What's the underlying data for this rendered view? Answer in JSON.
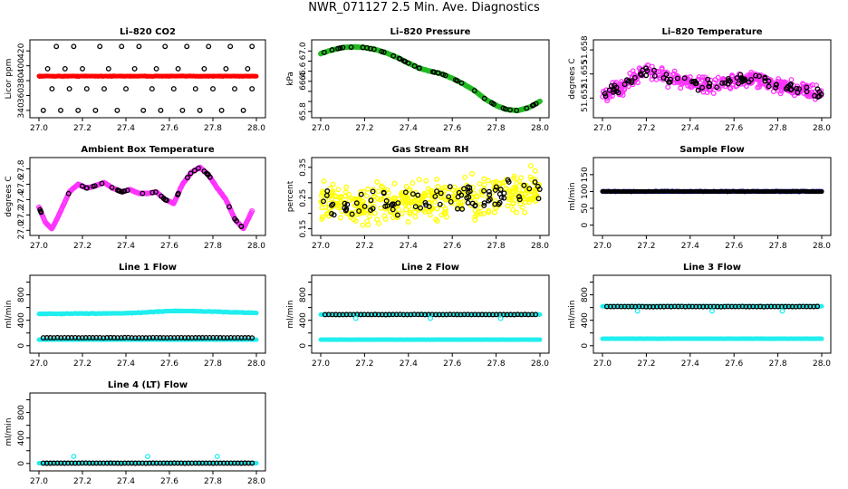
{
  "figure_title": "NWR_071127  2.5 Min. Ave. Diagnostics",
  "colors": {
    "black": "#000000",
    "red": "#ff0000",
    "green": "#22bb22",
    "magenta": "#ff33ff",
    "yellow": "#ffff00",
    "blue": "#0000ee",
    "cyan": "#22eeee"
  },
  "chart_data": [
    {
      "id": "co2",
      "type": "scatter",
      "title": "Li–820 CO2",
      "ylabel": "Licor ppm",
      "xlim": [
        27.0,
        28.0
      ],
      "ylim": [
        335,
        430
      ],
      "xticks": [
        27.0,
        27.2,
        27.4,
        27.6,
        27.8,
        28.0
      ],
      "xtick_labels": [
        "27.0",
        "27.2",
        "27.4",
        "27.6",
        "27.8",
        "28.0"
      ],
      "yticks": [
        340,
        360,
        380,
        400,
        420
      ],
      "ytick_labels": [
        "340",
        "360",
        "380",
        "400",
        "420"
      ],
      "series": [
        {
          "name": "primary",
          "color": "red",
          "style": "dots",
          "x_range": [
            27.0,
            28.0
          ],
          "baseline": 386,
          "noise": 0.6,
          "n": 300
        },
        {
          "name": "standards",
          "color": "black",
          "style": "rings",
          "x": [
            27.02,
            27.1,
            27.18,
            27.26,
            27.36,
            27.48,
            27.56,
            27.66,
            27.74,
            27.84,
            27.94,
            27.06,
            27.14,
            27.22,
            27.3,
            27.4,
            27.52,
            27.62,
            27.72,
            27.8,
            27.9,
            27.98,
            27.04,
            27.12,
            27.2,
            27.32,
            27.44,
            27.54,
            27.64,
            27.76,
            27.86,
            27.96,
            27.08,
            27.16,
            27.28,
            27.38,
            27.46,
            27.58,
            27.68,
            27.78,
            27.88,
            27.98
          ],
          "y": [
            340,
            340,
            340,
            340,
            340,
            340,
            340,
            340,
            340,
            340,
            340,
            369,
            369,
            369,
            369,
            369,
            369,
            369,
            369,
            369,
            369,
            369,
            396,
            396,
            396,
            396,
            396,
            396,
            396,
            396,
            396,
            396,
            426,
            426,
            426,
            426,
            426,
            426,
            426,
            426,
            426,
            426
          ]
        }
      ]
    },
    {
      "id": "pressure",
      "type": "scatter",
      "title": "Li–820 Pressure",
      "ylabel": "kPa",
      "xlim": [
        27.0,
        28.0
      ],
      "ylim": [
        65.75,
        67.15
      ],
      "xticks": [
        27.0,
        27.2,
        27.4,
        27.6,
        27.8,
        28.0
      ],
      "xtick_labels": [
        "27.0",
        "27.2",
        "27.4",
        "27.6",
        "27.8",
        "28.0"
      ],
      "yticks": [
        65.8,
        66.0,
        66.2,
        66.4,
        66.6,
        66.8,
        67.0
      ],
      "ytick_labels": [
        "65.8",
        "",
        "",
        "66.4",
        "66.6",
        "",
        "67.0"
      ],
      "series": [
        {
          "name": "pressure",
          "color": "green",
          "style": "curve-rings",
          "x": [
            27.0,
            27.05,
            27.1,
            27.15,
            27.2,
            27.25,
            27.3,
            27.35,
            27.4,
            27.45,
            27.5,
            27.55,
            27.6,
            27.65,
            27.7,
            27.75,
            27.8,
            27.85,
            27.9,
            27.95,
            28.0
          ],
          "y": [
            66.95,
            67.02,
            67.07,
            67.08,
            67.07,
            67.03,
            66.96,
            66.87,
            66.76,
            66.66,
            66.6,
            66.55,
            66.46,
            66.35,
            66.22,
            66.05,
            65.92,
            65.84,
            65.82,
            65.88,
            66.0
          ]
        }
      ]
    },
    {
      "id": "licor-temp",
      "type": "scatter",
      "title": "Li–820 Temperature",
      "ylabel": "degrees C",
      "xlim": [
        27.0,
        28.0
      ],
      "ylim": [
        51.65,
        51.6588
      ],
      "xticks": [
        27.0,
        27.2,
        27.4,
        27.6,
        27.8,
        28.0
      ],
      "xtick_labels": [
        "27.0",
        "27.2",
        "27.4",
        "27.6",
        "27.8",
        "28.0"
      ],
      "yticks": [
        51.652,
        51.655,
        51.658
      ],
      "ytick_labels": [
        "51.652",
        "51.655",
        "51.658"
      ],
      "series": [
        {
          "name": "temperature",
          "color": "magenta",
          "style": "noisy-rings",
          "x": [
            27.0,
            27.1,
            27.2,
            27.3,
            27.4,
            27.5,
            27.6,
            27.7,
            27.8,
            27.9,
            28.0
          ],
          "y": [
            51.6525,
            51.6535,
            51.6555,
            51.6545,
            51.6538,
            51.6535,
            51.6542,
            51.6545,
            51.6535,
            51.653,
            51.6525
          ],
          "spread": 0.0014
        }
      ]
    },
    {
      "id": "ambient-temp",
      "type": "scatter",
      "title": "Ambient Box Temperature",
      "ylabel": "degrees C",
      "xlim": [
        27.0,
        28.0
      ],
      "ylim": [
        26.98,
        27.9
      ],
      "xticks": [
        27.0,
        27.2,
        27.4,
        27.6,
        27.8,
        28.0
      ],
      "xtick_labels": [
        "27.0",
        "27.2",
        "27.4",
        "27.6",
        "27.8",
        "28.0"
      ],
      "yticks": [
        27.0,
        27.2,
        27.4,
        27.6,
        27.8
      ],
      "ytick_labels": [
        "27.0",
        "27.2",
        "27.4",
        "27.6",
        "27.8"
      ],
      "series": [
        {
          "name": "temperature",
          "color": "magenta",
          "style": "curve-rings",
          "x": [
            27.0,
            27.03,
            27.06,
            27.1,
            27.14,
            27.18,
            27.22,
            27.26,
            27.3,
            27.34,
            27.38,
            27.42,
            27.46,
            27.5,
            27.54,
            27.58,
            27.62,
            27.66,
            27.7,
            27.74,
            27.78,
            27.82,
            27.86,
            27.9,
            27.94,
            27.98
          ],
          "y": [
            27.3,
            27.1,
            27.02,
            27.25,
            27.5,
            27.6,
            27.55,
            27.58,
            27.62,
            27.55,
            27.5,
            27.53,
            27.48,
            27.48,
            27.5,
            27.4,
            27.35,
            27.6,
            27.75,
            27.82,
            27.72,
            27.55,
            27.4,
            27.15,
            27.02,
            27.25
          ]
        }
      ]
    },
    {
      "id": "rh",
      "type": "scatter",
      "title": "Gas Stream RH",
      "ylabel": "percent",
      "xlim": [
        27.0,
        28.0
      ],
      "ylim": [
        0.14,
        0.37
      ],
      "xticks": [
        27.0,
        27.2,
        27.4,
        27.6,
        27.8,
        28.0
      ],
      "xtick_labels": [
        "27.0",
        "27.2",
        "27.4",
        "27.6",
        "27.8",
        "28.0"
      ],
      "yticks": [
        0.15,
        0.2,
        0.25,
        0.3,
        0.35
      ],
      "ytick_labels": [
        "0.15",
        "",
        "0.25",
        "",
        "0.35"
      ],
      "series": [
        {
          "name": "rh",
          "color": "yellow",
          "style": "noisy-rings",
          "x": [
            27.0,
            27.2,
            27.4,
            27.6,
            27.8,
            28.0
          ],
          "y": [
            0.24,
            0.22,
            0.24,
            0.25,
            0.26,
            0.28
          ],
          "spread": 0.09
        }
      ]
    },
    {
      "id": "sample-flow",
      "type": "scatter",
      "title": "Sample Flow",
      "ylabel": "ml/min",
      "xlim": [
        27.0,
        28.0
      ],
      "ylim": [
        -20,
        190
      ],
      "xticks": [
        27.0,
        27.2,
        27.4,
        27.6,
        27.8,
        28.0
      ],
      "xtick_labels": [
        "27.0",
        "27.2",
        "27.4",
        "27.6",
        "27.8",
        "28.0"
      ],
      "yticks": [
        0,
        50,
        100,
        150
      ],
      "ytick_labels": [
        "0",
        "50",
        "100",
        "150"
      ],
      "series": [
        {
          "name": "sample",
          "color": "blue",
          "style": "dots",
          "x_range": [
            27.0,
            28.0
          ],
          "baseline": 100,
          "noise": 1.5,
          "n": 300
        },
        {
          "name": "standards",
          "color": "black",
          "style": "dots",
          "x_range": [
            27.0,
            28.0
          ],
          "baseline": 100,
          "noise": 1.0,
          "n": 120
        }
      ]
    },
    {
      "id": "line1-flow",
      "type": "scatter",
      "title": "Line 1 Flow",
      "ylabel": "ml/min",
      "xlim": [
        27.0,
        28.0
      ],
      "ylim": [
        -60,
        1050
      ],
      "xticks": [
        27.0,
        27.2,
        27.4,
        27.6,
        27.8,
        28.0
      ],
      "xtick_labels": [
        "27.0",
        "27.2",
        "27.4",
        "27.6",
        "27.8",
        "28.0"
      ],
      "yticks": [
        0,
        200,
        400,
        600,
        800,
        1000
      ],
      "ytick_labels": [
        "0",
        "",
        "400",
        "",
        "800",
        ""
      ],
      "series": [
        {
          "name": "line1",
          "color": "cyan",
          "style": "curve-dots",
          "x": [
            27.0,
            27.2,
            27.4,
            27.5,
            27.6,
            27.7,
            27.8,
            27.9,
            28.0
          ],
          "y": [
            500,
            505,
            510,
            525,
            545,
            545,
            535,
            525,
            515
          ]
        },
        {
          "name": "line1-low",
          "color": "cyan",
          "style": "dots",
          "x_range": [
            27.0,
            28.0
          ],
          "baseline": 95,
          "noise": 2,
          "n": 200
        },
        {
          "name": "standards",
          "color": "black",
          "style": "rings",
          "x_range": [
            27.02,
            27.98
          ],
          "baseline": 125,
          "noise": 3,
          "n": 60
        }
      ]
    },
    {
      "id": "line2-flow",
      "type": "scatter",
      "title": "Line 2 Flow",
      "ylabel": "ml/min",
      "xlim": [
        27.0,
        28.0
      ],
      "ylim": [
        -60,
        1050
      ],
      "xticks": [
        27.0,
        27.2,
        27.4,
        27.6,
        27.8,
        28.0
      ],
      "xtick_labels": [
        "27.0",
        "27.2",
        "27.4",
        "27.6",
        "27.8",
        "28.0"
      ],
      "yticks": [
        0,
        200,
        400,
        600,
        800,
        1000
      ],
      "ytick_labels": [
        "0",
        "",
        "400",
        "",
        "800",
        ""
      ],
      "series": [
        {
          "name": "line2",
          "color": "cyan",
          "style": "dots",
          "x_range": [
            27.0,
            28.0
          ],
          "baseline": 490,
          "noise": 3,
          "n": 250
        },
        {
          "name": "line2-low",
          "color": "cyan",
          "style": "dots",
          "x_range": [
            27.0,
            28.0
          ],
          "baseline": 95,
          "noise": 2,
          "n": 200
        },
        {
          "name": "standards",
          "color": "black",
          "style": "rings",
          "x_range": [
            27.02,
            27.98
          ],
          "baseline": 490,
          "noise": 3,
          "n": 60
        },
        {
          "name": "outliers",
          "color": "cyan",
          "style": "rings",
          "x": [
            27.16,
            27.5,
            27.82
          ],
          "y": [
            430,
            430,
            430
          ]
        }
      ]
    },
    {
      "id": "line3-flow",
      "type": "scatter",
      "title": "Line 3 Flow",
      "ylabel": "ml/min",
      "xlim": [
        27.0,
        28.0
      ],
      "ylim": [
        -60,
        1050
      ],
      "xticks": [
        27.0,
        27.2,
        27.4,
        27.6,
        27.8,
        28.0
      ],
      "xtick_labels": [
        "27.0",
        "27.2",
        "27.4",
        "27.6",
        "27.8",
        "28.0"
      ],
      "yticks": [
        0,
        200,
        400,
        600,
        800,
        1000
      ],
      "ytick_labels": [
        "0",
        "",
        "400",
        "",
        "800",
        ""
      ],
      "series": [
        {
          "name": "line3",
          "color": "cyan",
          "style": "dots",
          "x_range": [
            27.0,
            28.0
          ],
          "baseline": 620,
          "noise": 4,
          "n": 250
        },
        {
          "name": "line3-low",
          "color": "cyan",
          "style": "dots",
          "x_range": [
            27.0,
            28.0
          ],
          "baseline": 110,
          "noise": 3,
          "n": 220
        },
        {
          "name": "standards",
          "color": "black",
          "style": "rings",
          "x_range": [
            27.02,
            27.98
          ],
          "baseline": 615,
          "noise": 4,
          "n": 60
        },
        {
          "name": "outliers",
          "color": "cyan",
          "style": "rings",
          "x": [
            27.16,
            27.5,
            27.82
          ],
          "y": [
            545,
            545,
            545
          ]
        }
      ]
    },
    {
      "id": "line4-flow",
      "type": "scatter",
      "title": "Line 4 (LT) Flow",
      "ylabel": "ml/min",
      "xlim": [
        27.0,
        28.0
      ],
      "ylim": [
        -60,
        1050
      ],
      "xticks": [
        27.0,
        27.2,
        27.4,
        27.6,
        27.8,
        28.0
      ],
      "xtick_labels": [
        "27.0",
        "27.2",
        "27.4",
        "27.6",
        "27.8",
        "28.0"
      ],
      "yticks": [
        0,
        200,
        400,
        600,
        800,
        1000
      ],
      "ytick_labels": [
        "0",
        "",
        "400",
        "",
        "800",
        ""
      ],
      "series": [
        {
          "name": "line4",
          "color": "cyan",
          "style": "dots",
          "x_range": [
            27.0,
            28.0
          ],
          "baseline": 5,
          "noise": 2,
          "n": 250
        },
        {
          "name": "standards",
          "color": "black",
          "style": "rings",
          "x_range": [
            27.02,
            27.98
          ],
          "baseline": 5,
          "noise": 2,
          "n": 60
        },
        {
          "name": "outliers",
          "color": "cyan",
          "style": "rings",
          "x": [
            27.16,
            27.5,
            27.82
          ],
          "y": [
            110,
            110,
            110
          ]
        }
      ]
    }
  ]
}
